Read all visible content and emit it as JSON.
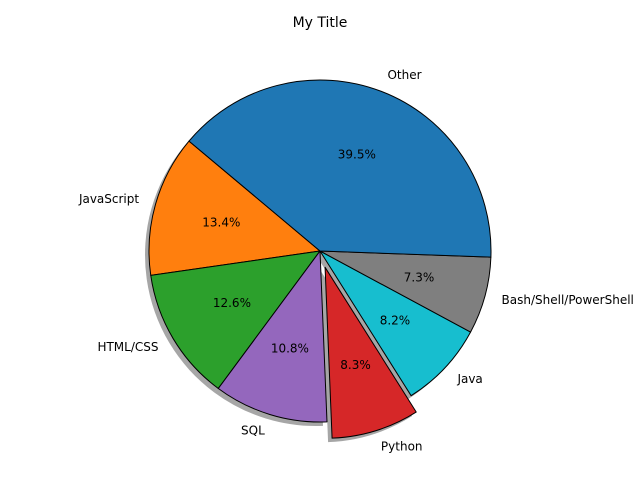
{
  "chart_data": {
    "type": "pie",
    "title": "My Title",
    "start_angle_deg": 140,
    "direction": "counterclockwise",
    "shadow": true,
    "slices": [
      {
        "label": "JavaScript",
        "value": 13.4,
        "percent_label": "13.4%",
        "color": "#ff7f0e",
        "explode": 0
      },
      {
        "label": "HTML/CSS",
        "value": 12.6,
        "percent_label": "12.6%",
        "color": "#2ca02c",
        "explode": 0
      },
      {
        "label": "SQL",
        "value": 10.8,
        "percent_label": "10.8%",
        "color": "#9467bd",
        "explode": 0
      },
      {
        "label": "Python",
        "value": 8.3,
        "percent_label": "8.3%",
        "color": "#d62728",
        "explode": 0.1
      },
      {
        "label": "Java",
        "value": 8.2,
        "percent_label": "8.2%",
        "color": "#17becf",
        "explode": 0
      },
      {
        "label": "Bash/Shell/PowerShell",
        "value": 7.3,
        "percent_label": "7.3%",
        "color": "#7f7f7f",
        "explode": 0
      },
      {
        "label": "Other",
        "value": 39.5,
        "percent_label": "39.5%",
        "color": "#1f77b4",
        "explode": 0
      }
    ]
  }
}
